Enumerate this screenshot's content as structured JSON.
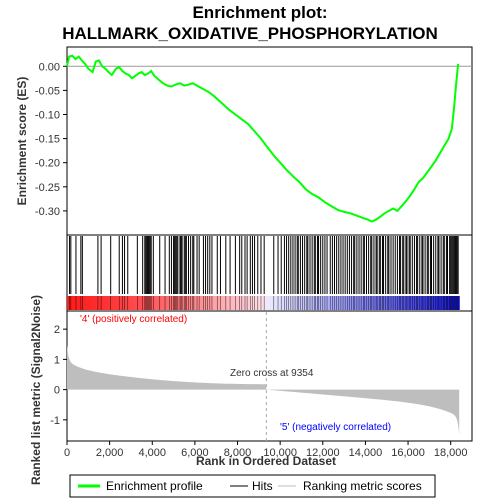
{
  "chart_data": {
    "type": "line",
    "title_line1": "Enrichment plot:",
    "title_line2": "HALLMARK_OXIDATIVE_PHOSPHORYLATION",
    "ylabel_top": "Enrichment score (ES)",
    "ylabel_bottom": "Ranked list metric (Signal2Noise)",
    "xlabel": "Rank in Ordered Dataset",
    "xlim": [
      0,
      19000
    ],
    "ylim_top": [
      -0.35,
      0.04
    ],
    "ylim_bottom": [
      -1.7,
      2.6
    ],
    "x_ticks": [
      0,
      2000,
      4000,
      6000,
      8000,
      10000,
      12000,
      14000,
      16000,
      18000
    ],
    "x_tick_labels": [
      "0",
      "2,000",
      "4,000",
      "6,000",
      "8,000",
      "10,000",
      "12,000",
      "14,000",
      "16,000",
      "18,000"
    ],
    "y_ticks_top": [
      0.0,
      -0.05,
      -0.1,
      -0.15,
      -0.2,
      -0.25,
      -0.3
    ],
    "y_tick_labels_top": [
      "0.00",
      "-0.05",
      "-0.10",
      "-0.15",
      "-0.20",
      "-0.25",
      "-0.30"
    ],
    "y_ticks_bottom": [
      2,
      1,
      0,
      -1
    ],
    "y_tick_labels_bottom": [
      "2",
      "1",
      "0",
      "-1"
    ],
    "annotation_pos": "'4' (positively correlated)",
    "annotation_neg": "'5' (negatively correlated)",
    "zero_cross_label": "Zero cross at 9354",
    "zero_cross": 9354,
    "n_genes": 18400,
    "legend": [
      "Enrichment profile",
      "Hits",
      "Ranking metric scores"
    ],
    "colors": {
      "profile": "#00ff00",
      "hits": "#000000",
      "metric": "#bebebe",
      "pos_text": "#ff0000",
      "neg_text": "#0000ff"
    },
    "series": [
      {
        "name": "Enrichment profile",
        "x": [
          0,
          100,
          250,
          400,
          550,
          700,
          850,
          1000,
          1200,
          1350,
          1500,
          1650,
          1800,
          1950,
          2100,
          2300,
          2450,
          2600,
          2750,
          2900,
          3050,
          3200,
          3350,
          3500,
          3650,
          3800,
          3950,
          4100,
          4300,
          4500,
          4700,
          4900,
          5100,
          5300,
          5500,
          5700,
          5900,
          6100,
          6300,
          6500,
          6700,
          6900,
          7100,
          7300,
          7600,
          7900,
          8200,
          8500,
          8800,
          9100,
          9400,
          9700,
          10000,
          10300,
          10600,
          10900,
          11200,
          11500,
          11800,
          12100,
          12400,
          12700,
          13000,
          13300,
          13600,
          13900,
          14100,
          14300,
          14500,
          14700,
          14900,
          15100,
          15300,
          15500,
          15700,
          15900,
          16100,
          16300,
          16500,
          16700,
          16900,
          17100,
          17300,
          17500,
          17700,
          17900,
          18050,
          18150,
          18250,
          18350
        ],
        "y": [
          0.0,
          0.02,
          0.022,
          0.015,
          0.02,
          0.012,
          0.005,
          -0.005,
          -0.012,
          0.01,
          0.012,
          0.0,
          -0.005,
          -0.012,
          -0.018,
          -0.005,
          -0.002,
          -0.01,
          -0.015,
          -0.018,
          -0.025,
          -0.02,
          -0.015,
          -0.012,
          -0.018,
          -0.015,
          -0.01,
          -0.02,
          -0.028,
          -0.035,
          -0.04,
          -0.042,
          -0.038,
          -0.035,
          -0.04,
          -0.038,
          -0.035,
          -0.04,
          -0.045,
          -0.05,
          -0.055,
          -0.062,
          -0.07,
          -0.078,
          -0.09,
          -0.1,
          -0.11,
          -0.12,
          -0.135,
          -0.15,
          -0.168,
          -0.185,
          -0.2,
          -0.215,
          -0.228,
          -0.24,
          -0.255,
          -0.265,
          -0.272,
          -0.282,
          -0.29,
          -0.298,
          -0.302,
          -0.305,
          -0.31,
          -0.315,
          -0.318,
          -0.322,
          -0.318,
          -0.312,
          -0.305,
          -0.3,
          -0.295,
          -0.3,
          -0.29,
          -0.28,
          -0.268,
          -0.255,
          -0.24,
          -0.232,
          -0.22,
          -0.208,
          -0.195,
          -0.18,
          -0.165,
          -0.15,
          -0.13,
          -0.09,
          -0.04,
          0.005
        ]
      }
    ],
    "hits": [
      120,
      180,
      420,
      650,
      720,
      1450,
      1600,
      2050,
      2450,
      2600,
      2700,
      2850,
      3300,
      3550,
      3650,
      3700,
      3750,
      3800,
      3850,
      3900,
      3950,
      4050,
      4350,
      4600,
      4800,
      4900,
      5000,
      5050,
      5100,
      5150,
      5200,
      5300,
      5350,
      5400,
      5500,
      5550,
      5600,
      5700,
      5800,
      5900,
      5950,
      6100,
      6200,
      6400,
      6500,
      6600,
      6700,
      6800,
      7050,
      7200,
      7450,
      7650,
      7900,
      8100,
      8200,
      8350,
      8450,
      8600,
      8700,
      8800,
      8950,
      9100,
      9250,
      9700,
      9900,
      10050,
      10200,
      10300,
      10400,
      10500,
      10600,
      10700,
      10800,
      10850,
      10950,
      11050,
      11150,
      11250,
      11300,
      11400,
      11500,
      11600,
      11650,
      11750,
      11800,
      11900,
      12000,
      12100,
      12200,
      12350,
      12450,
      12550,
      12650,
      12750,
      12850,
      12950,
      13050,
      13150,
      13250,
      13350,
      13450,
      13500,
      13600,
      13700,
      13800,
      13900,
      13950,
      14050,
      14150,
      14250,
      14300,
      14400,
      14500,
      14550,
      14650,
      14700,
      14800,
      14850,
      14950,
      15050,
      15100,
      15200,
      15300,
      15400,
      15500,
      15600,
      15650,
      15750,
      15800,
      15900,
      15950,
      16050,
      16100,
      16200,
      16300,
      16400,
      16450,
      16550,
      16650,
      16700,
      16800,
      16900,
      16950,
      17050,
      17100,
      17200,
      17300,
      17400,
      17450,
      17550,
      17650,
      17700,
      17800,
      17850,
      17950,
      18000,
      18050,
      18100,
      18150,
      18200,
      18250,
      18300,
      18350
    ]
  }
}
